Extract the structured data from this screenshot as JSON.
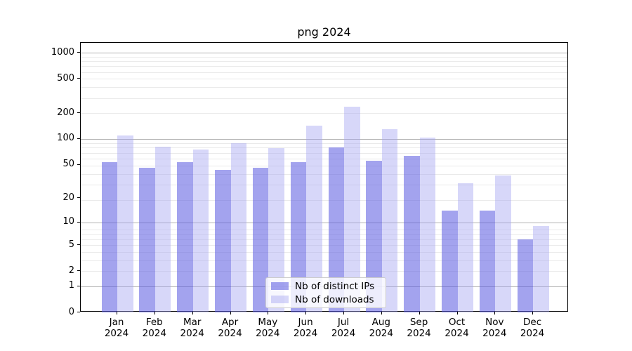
{
  "title": "png 2024",
  "chart_data": {
    "type": "bar",
    "title": "png 2024",
    "categories": [
      "Jan",
      "Feb",
      "Mar",
      "Apr",
      "May",
      "Jun",
      "Jul",
      "Aug",
      "Sep",
      "Oct",
      "Nov",
      "Dec"
    ],
    "category_year": "2024",
    "series": [
      {
        "name": "Nb of distinct IPs",
        "color": "rgba(88,88,224,0.55)",
        "values": [
          53,
          46,
          53,
          43,
          46,
          53,
          80,
          55,
          64,
          14,
          14,
          6
        ]
      },
      {
        "name": "Nb of downloads",
        "color": "rgba(160,160,240,0.42)",
        "values": [
          110,
          81,
          75,
          90,
          78,
          142,
          235,
          131,
          104,
          30,
          37,
          9
        ]
      }
    ],
    "y_axis": {
      "scale": "log10(value+1)",
      "tick_labels": [
        "0",
        "1",
        "2",
        "5",
        "10",
        "20",
        "50",
        "100",
        "200",
        "500",
        "1000"
      ],
      "tick_values": [
        0,
        1,
        2,
        5,
        10,
        20,
        50,
        100,
        200,
        500,
        1000
      ],
      "range": [
        0,
        1300
      ]
    },
    "grid": {
      "major_color": "#b3b3b3",
      "minor_color": "#eaeaea"
    },
    "legend": {
      "position": "lower center"
    }
  },
  "legend": {
    "ips_label": "Nb of distinct IPs",
    "downloads_label": "Nb of downloads"
  }
}
